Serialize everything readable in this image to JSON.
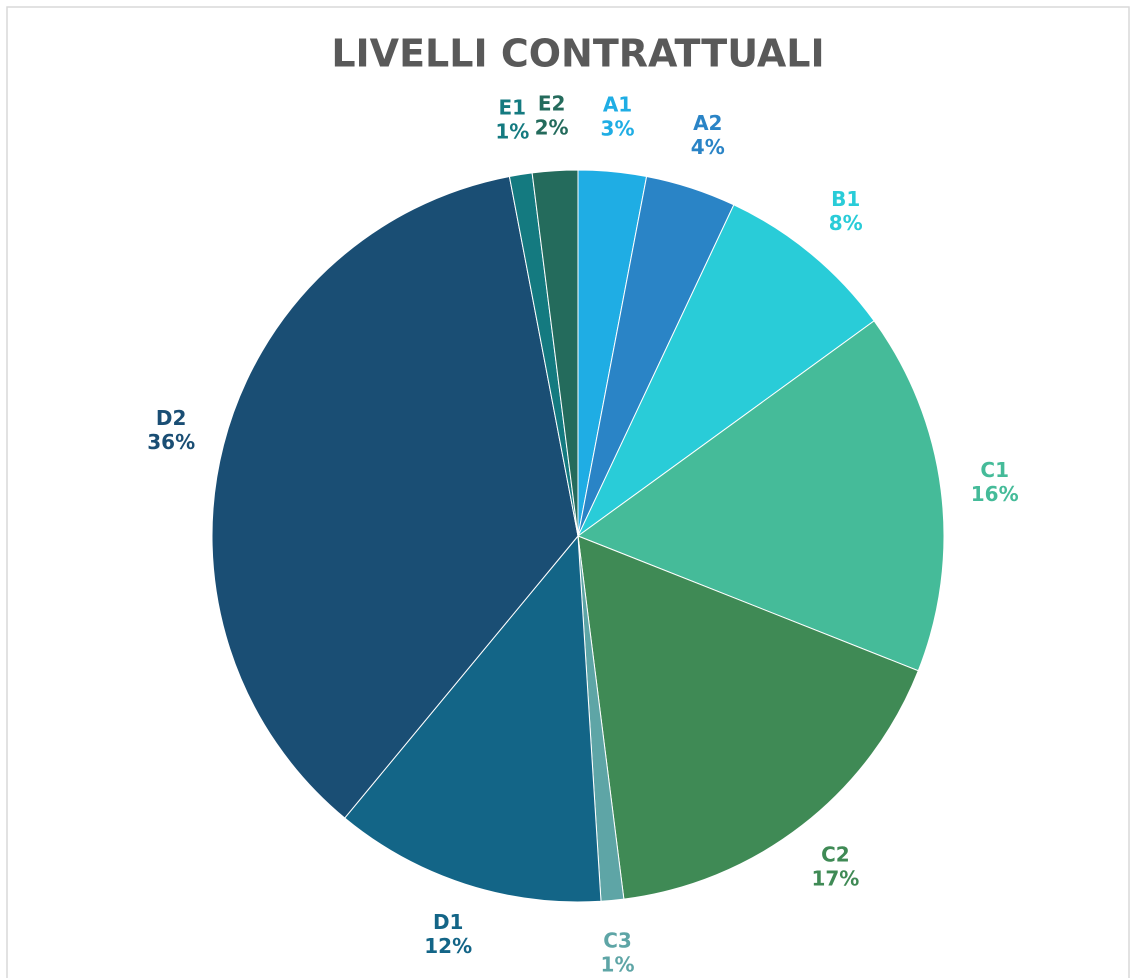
{
  "chart_data": {
    "type": "pie",
    "title": "LIVELLI CONTRATTUALI",
    "categories": [
      "A1",
      "A2",
      "B1",
      "C1",
      "C2",
      "C3",
      "D1",
      "D2",
      "E1",
      "E2"
    ],
    "values": [
      3,
      4,
      8,
      16,
      17,
      1,
      12,
      36,
      1,
      2
    ],
    "value_labels": [
      "3%",
      "4%",
      "8%",
      "16%",
      "17%",
      "1%",
      "12%",
      "36%",
      "1%",
      "2%"
    ],
    "colors": [
      "#1fade4",
      "#2a84c6",
      "#29ccd8",
      "#45bb99",
      "#3f8a55",
      "#5ea5a6",
      "#136587",
      "#1a4e74",
      "#147a80",
      "#246b5c"
    ]
  }
}
